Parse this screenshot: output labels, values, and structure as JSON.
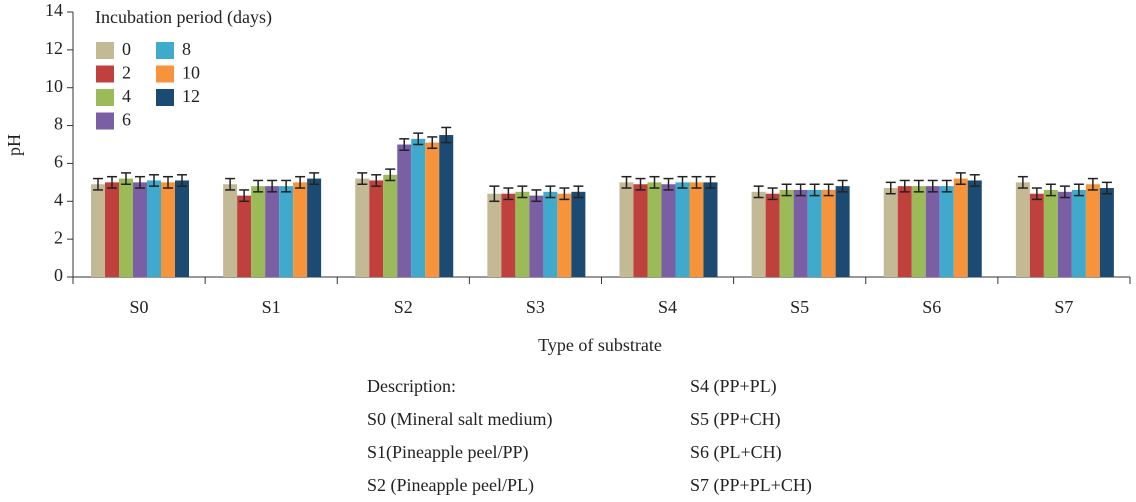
{
  "chart_data": {
    "type": "bar",
    "ylabel": "pH",
    "xlabel": "Type of substrate",
    "legend_title": "Incubation period (days)",
    "categories": [
      "S0",
      "S1",
      "S2",
      "S3",
      "S4",
      "S5",
      "S6",
      "S7"
    ],
    "ylim": [
      0,
      14
    ],
    "yticks": [
      0,
      2,
      4,
      6,
      8,
      10,
      12,
      14
    ],
    "series": [
      {
        "name": "0",
        "color": "#c3b995",
        "values": [
          4.9,
          4.9,
          5.2,
          4.4,
          5.0,
          4.5,
          4.7,
          5.0
        ],
        "errors": [
          0.3,
          0.3,
          0.3,
          0.4,
          0.3,
          0.3,
          0.3,
          0.3
        ]
      },
      {
        "name": "2",
        "color": "#c0403e",
        "values": [
          5.0,
          4.3,
          5.1,
          4.4,
          4.9,
          4.4,
          4.8,
          4.4
        ],
        "errors": [
          0.3,
          0.3,
          0.3,
          0.3,
          0.3,
          0.3,
          0.3,
          0.3
        ]
      },
      {
        "name": "4",
        "color": "#9bbb59",
        "values": [
          5.2,
          4.8,
          5.4,
          4.5,
          5.0,
          4.6,
          4.8,
          4.6
        ],
        "errors": [
          0.3,
          0.3,
          0.3,
          0.3,
          0.3,
          0.3,
          0.3,
          0.3
        ]
      },
      {
        "name": "6",
        "color": "#7b5fa5",
        "values": [
          5.0,
          4.8,
          7.0,
          4.3,
          4.9,
          4.6,
          4.8,
          4.5
        ],
        "errors": [
          0.3,
          0.3,
          0.3,
          0.3,
          0.3,
          0.3,
          0.3,
          0.3
        ]
      },
      {
        "name": "8",
        "color": "#3faacb",
        "values": [
          5.1,
          4.8,
          7.3,
          4.5,
          5.0,
          4.6,
          4.8,
          4.6
        ],
        "errors": [
          0.3,
          0.3,
          0.3,
          0.3,
          0.3,
          0.3,
          0.3,
          0.3
        ]
      },
      {
        "name": "10",
        "color": "#f7933b",
        "values": [
          5.0,
          5.0,
          7.1,
          4.4,
          5.0,
          4.6,
          5.2,
          4.9
        ],
        "errors": [
          0.3,
          0.3,
          0.3,
          0.3,
          0.3,
          0.3,
          0.3,
          0.3
        ]
      },
      {
        "name": "12",
        "color": "#1b4a72",
        "values": [
          5.1,
          5.2,
          7.5,
          4.5,
          5.0,
          4.8,
          5.1,
          4.7
        ],
        "errors": [
          0.3,
          0.3,
          0.4,
          0.3,
          0.3,
          0.3,
          0.3,
          0.3
        ]
      }
    ]
  },
  "description": {
    "left": [
      "Description:",
      "S0 (Mineral salt medium)",
      "S1(Pineapple peel/PP)",
      "S2 (Pineapple peel/PL)"
    ],
    "right": [
      "S4 (PP+PL)",
      "S5 (PP+CH)",
      "S6 (PL+CH)",
      "S7 (PP+PL+CH)"
    ]
  }
}
